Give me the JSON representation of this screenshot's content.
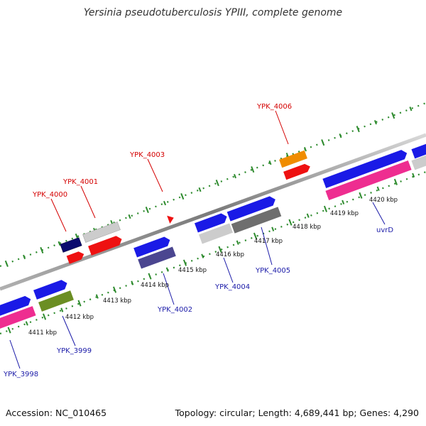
{
  "title": "Yersinia pseudotuberculosis YPIII, complete genome",
  "accession": "Accession: NC_010465",
  "summary": "Topology: circular; Length: 4,689,441 bp; Genes: 4,290",
  "colors": {
    "backbone": "#8a8a8a",
    "ruler": "#2e8b2e",
    "label_top": "#d40000",
    "label_bottom": "#1a1aa8"
  },
  "kbp_labels": [
    {
      "id": "4411",
      "text": "4411 kbp"
    },
    {
      "id": "4412",
      "text": "4412 kbp"
    },
    {
      "id": "4413",
      "text": "4413 kbp"
    },
    {
      "id": "4414",
      "text": "4414 kbp"
    },
    {
      "id": "4415",
      "text": "4415 kbp"
    },
    {
      "id": "4416",
      "text": "4416 kbp"
    },
    {
      "id": "4417",
      "text": "4417 kbp"
    },
    {
      "id": "4418",
      "text": "4418 kbp"
    },
    {
      "id": "4419",
      "text": "4419 kbp"
    },
    {
      "id": "4420",
      "text": "4420 kbp"
    }
  ],
  "gene_labels": [
    {
      "id": "ypk4000",
      "text": "YPK_4000",
      "strand": "top"
    },
    {
      "id": "ypk4001",
      "text": "YPK_4001",
      "strand": "top"
    },
    {
      "id": "ypk4003",
      "text": "YPK_4003",
      "strand": "top"
    },
    {
      "id": "ypk4006",
      "text": "YPK_4006",
      "strand": "top"
    },
    {
      "id": "ypk3998",
      "text": "YPK_3998",
      "strand": "bottom"
    },
    {
      "id": "ypk3999",
      "text": "YPK_3999",
      "strand": "bottom"
    },
    {
      "id": "ypk4002",
      "text": "YPK_4002",
      "strand": "bottom"
    },
    {
      "id": "ypk4004",
      "text": "YPK_4004",
      "strand": "bottom"
    },
    {
      "id": "ypk4005",
      "text": "YPK_4005",
      "strand": "bottom"
    },
    {
      "id": "uvrd",
      "text": "uvrD",
      "strand": "bottom"
    }
  ]
}
